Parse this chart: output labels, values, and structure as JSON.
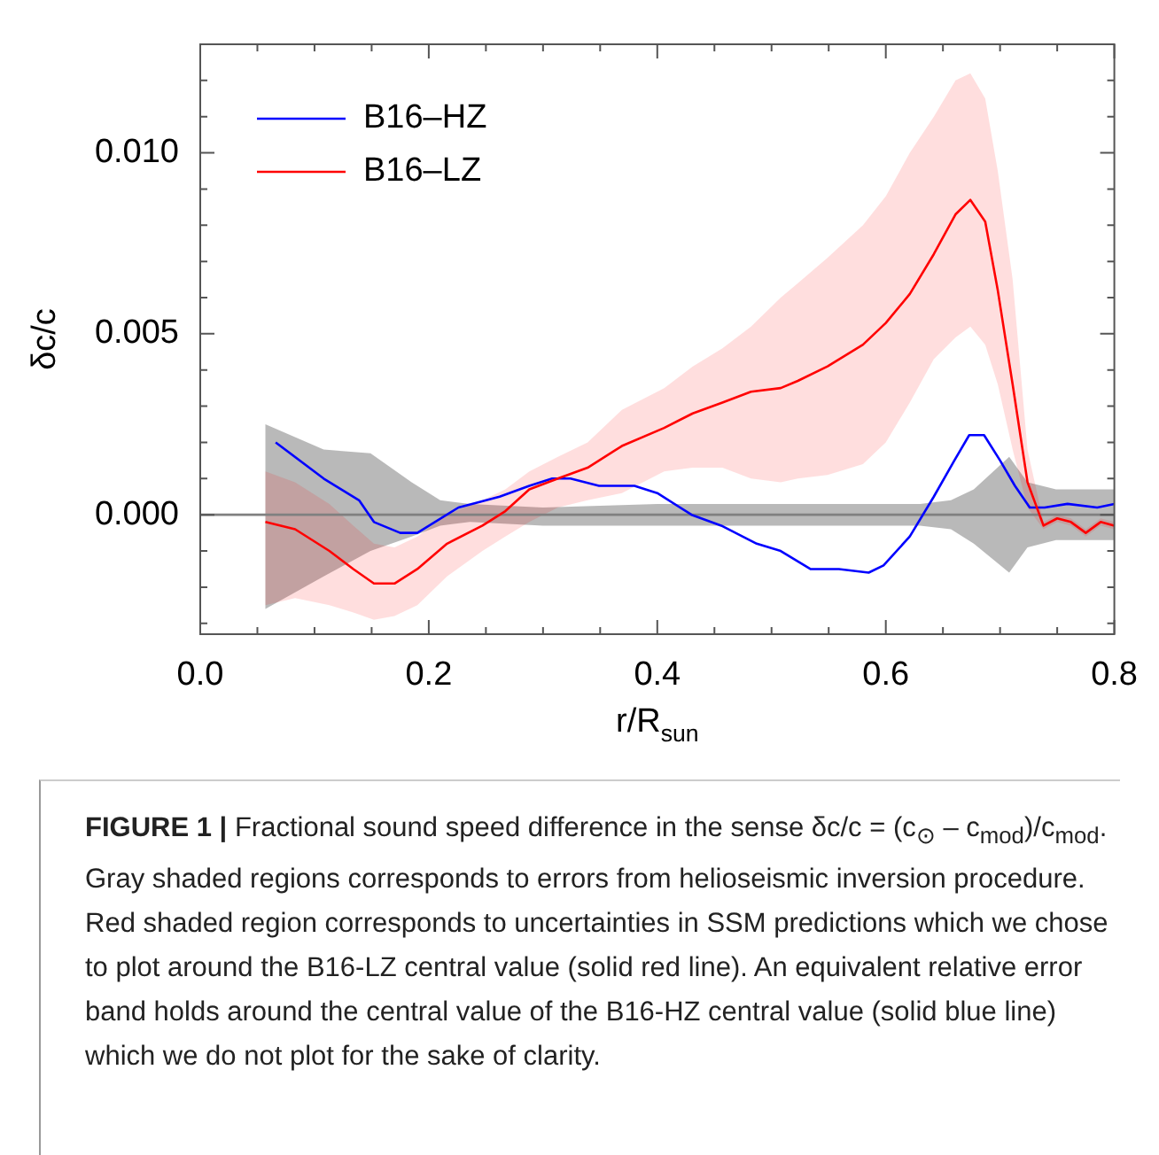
{
  "chart_data": {
    "type": "line",
    "xlabel": "r/R$_{sun}$",
    "ylabel": "δc/c",
    "xlim": [
      0,
      0.8
    ],
    "ylim": [
      -0.0033,
      0.013
    ],
    "xticks": [
      {
        "value": 0,
        "label": "0.0"
      },
      {
        "value": 0.05,
        "label": null
      },
      {
        "value": 0.1,
        "label": null
      },
      {
        "value": 0.15,
        "label": null
      },
      {
        "value": 0.2,
        "label": "0.2"
      },
      {
        "value": 0.25,
        "label": null
      },
      {
        "value": 0.3,
        "label": null
      },
      {
        "value": 0.35,
        "label": null
      },
      {
        "value": 0.4,
        "label": "0.4"
      },
      {
        "value": 0.45,
        "label": null
      },
      {
        "value": 0.5,
        "label": null
      },
      {
        "value": 0.55,
        "label": null
      },
      {
        "value": 0.6,
        "label": "0.6"
      },
      {
        "value": 0.65,
        "label": null
      },
      {
        "value": 0.7,
        "label": null
      },
      {
        "value": 0.75,
        "label": null
      },
      {
        "value": 0.8,
        "label": "0.8"
      }
    ],
    "yticks": [
      {
        "value": -0.003,
        "label": null
      },
      {
        "value": -0.002,
        "label": null
      },
      {
        "value": -0.001,
        "label": null
      },
      {
        "value": 0,
        "label": "0.000"
      },
      {
        "value": 0.001,
        "label": null
      },
      {
        "value": 0.002,
        "label": null
      },
      {
        "value": 0.003,
        "label": null
      },
      {
        "value": 0.004,
        "label": null
      },
      {
        "value": 0.005,
        "label": "0.005"
      },
      {
        "value": 0.006,
        "label": null
      },
      {
        "value": 0.007,
        "label": null
      },
      {
        "value": 0.008,
        "label": null
      },
      {
        "value": 0.009,
        "label": null
      },
      {
        "value": 0.01,
        "label": "0.010"
      },
      {
        "value": 0.011,
        "label": null
      },
      {
        "value": 0.012,
        "label": null
      },
      {
        "value": 0.013,
        "label": null
      }
    ],
    "grid": false,
    "legend": "top left",
    "marker": "none",
    "line_style": "solid",
    "series": [
      {
        "color": "#808080",
        "x": [
          0,
          0.057,
          0.108,
          0.149,
          0.185,
          0.21,
          0.236,
          0.3,
          0.4,
          0.5,
          0.63,
          0.657,
          0.677,
          0.708,
          0.724,
          0.749,
          0.8
        ],
        "values": [
          0,
          0,
          0,
          0,
          0,
          0,
          0,
          0,
          0,
          0,
          0,
          0,
          0,
          0,
          0,
          0,
          0
        ],
        "lower": [
          null,
          -0.0026,
          -0.0017,
          -0.001,
          -0.0006,
          -0.0003,
          -0.0002,
          -0.0003,
          -0.0003,
          -0.0003,
          -0.0003,
          -0.0004,
          -0.0008,
          -0.0016,
          -0.0009,
          -0.0007,
          -0.0007
        ],
        "upper": [
          null,
          0.0025,
          0.0018,
          0.0017,
          0.0009,
          0.0004,
          0.0003,
          0.0002,
          0.0003,
          0.0003,
          0.0003,
          0.0004,
          0.0007,
          0.0016,
          0.0009,
          0.0007,
          0.0007
        ]
      },
      {
        "name": "B16–HZ",
        "color": "#0000ff",
        "x": [
          0.066,
          0.108,
          0.139,
          0.152,
          0.175,
          0.19,
          0.226,
          0.262,
          0.288,
          0.308,
          0.324,
          0.349,
          0.38,
          0.4,
          0.43,
          0.456,
          0.487,
          0.508,
          0.534,
          0.559,
          0.585,
          0.598,
          0.621,
          0.642,
          0.66,
          0.673,
          0.686,
          0.7,
          0.713,
          0.726,
          0.739,
          0.759,
          0.785,
          0.8
        ],
        "values": [
          0.002,
          0.001,
          0.0004,
          -0.0002,
          -0.0005,
          -0.0005,
          0.0002,
          0.0005,
          0.0008,
          0.001,
          0.001,
          0.0008,
          0.0008,
          0.0006,
          0,
          -0.0003,
          -0.0008,
          -0.001,
          -0.0015,
          -0.0015,
          -0.0016,
          -0.0014,
          -0.0006,
          0.0005,
          0.0015,
          0.0022,
          0.0022,
          0.0015,
          0.0008,
          0.0002,
          0.0002,
          0.0003,
          0.0002,
          0.0003
        ]
      },
      {
        "name": "B16–LZ",
        "color": "#ff0000",
        "x": [
          0.057,
          0.083,
          0.113,
          0.134,
          0.152,
          0.17,
          0.19,
          0.216,
          0.247,
          0.267,
          0.288,
          0.313,
          0.339,
          0.369,
          0.406,
          0.431,
          0.457,
          0.482,
          0.508,
          0.523,
          0.549,
          0.58,
          0.6,
          0.621,
          0.642,
          0.661,
          0.674,
          0.687,
          0.698,
          0.711,
          0.724,
          0.738,
          0.75,
          0.762,
          0.775,
          0.788,
          0.8
        ],
        "values": [
          -0.0002,
          -0.0004,
          -0.001,
          -0.0015,
          -0.0019,
          -0.0019,
          -0.0015,
          -0.0008,
          -0.0003,
          0.0001,
          0.0007,
          0.001,
          0.0013,
          0.0019,
          0.0024,
          0.0028,
          0.0031,
          0.0034,
          0.0035,
          0.0037,
          0.0041,
          0.0047,
          0.0053,
          0.0061,
          0.0072,
          0.0083,
          0.0087,
          0.0081,
          0.0062,
          0.0036,
          0.0009,
          -0.0003,
          -0.0001,
          -0.0002,
          -0.0005,
          -0.0002,
          -0.0003
        ],
        "lower": [
          -0.0025,
          -0.0023,
          -0.0025,
          -0.0027,
          -0.0029,
          -0.0028,
          -0.0025,
          -0.0017,
          -0.001,
          -0.0006,
          -0.0002,
          0.0002,
          0.0004,
          0.0006,
          0.0012,
          0.0013,
          0.0013,
          0.001,
          0.0009,
          0.001,
          0.0011,
          0.0014,
          0.002,
          0.0031,
          0.0043,
          0.0049,
          0.0052,
          0.0047,
          0.0036,
          0.0018,
          0.0002,
          -0.0004,
          -0.0002,
          -0.0003,
          -0.0006,
          -0.0003,
          -0.0004
        ],
        "upper": [
          0.0012,
          0.0009,
          0.0003,
          -0.0003,
          -0.0008,
          -0.0009,
          -0.0006,
          0,
          0.0004,
          0.0007,
          0.0012,
          0.0016,
          0.002,
          0.0029,
          0.0035,
          0.0041,
          0.0046,
          0.0052,
          0.006,
          0.0064,
          0.0071,
          0.008,
          0.0088,
          0.01,
          0.011,
          0.012,
          0.0122,
          0.0115,
          0.0095,
          0.0065,
          0.0018,
          -0.0002,
          0,
          -0.0001,
          -0.0004,
          -0.0001,
          -0.0002
        ]
      }
    ],
    "annotations": [
      "FIGURE 1 | Fractional sound speed difference in the sense δc/c = (c$_{⊙}$ – c$_{mod}$)/c$_{mod}$. Gray shaded regions corresponds to errors from helioseismic inversion procedure. Red shaded region corresponds to uncertainties in SSM predictions which we chose to plot around the B16-LZ central value (solid red line). An equivalent relative error band holds around the central value of the B16-HZ central value (solid blue line) which we do not plot for the sake of clarity."
    ]
  }
}
